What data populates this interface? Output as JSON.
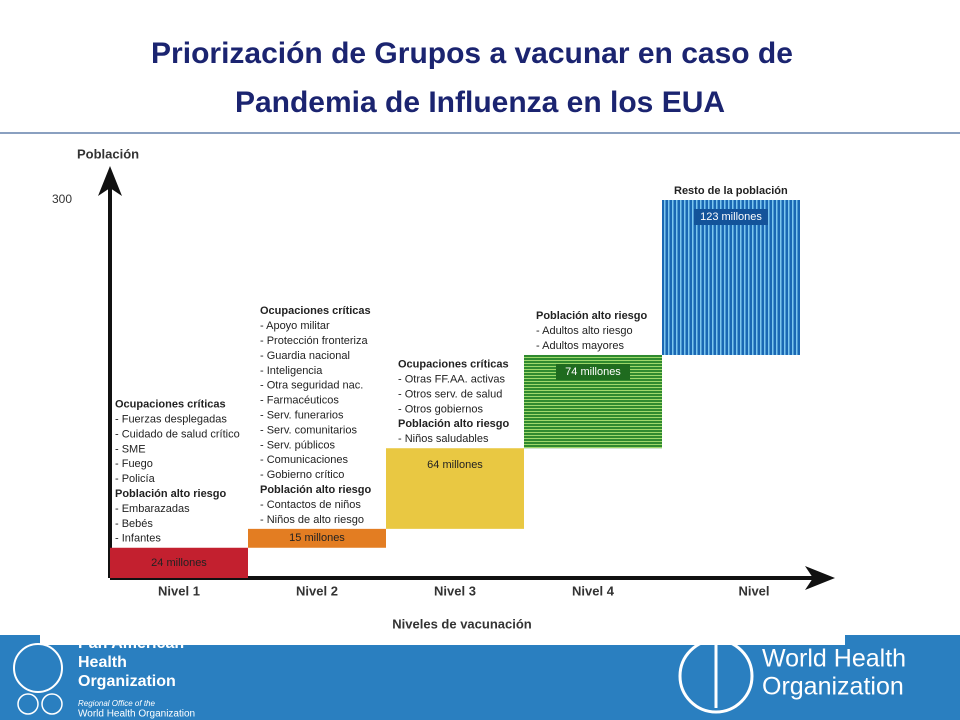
{
  "title": "Priorización de Grupos a vacunar en caso de Pandemia de Influenza en los EUA",
  "chart_data": {
    "type": "waterfall",
    "y_axis_label": "Población",
    "x_axis_label": "Niveles de vacunación",
    "categories": [
      "Nivel 1",
      "Nivel 2",
      "Nivel 3",
      "Nivel 4",
      "Nivel"
    ],
    "values": [
      24,
      15,
      64,
      74,
      123
    ],
    "value_labels": [
      "24 millones",
      "15 millones",
      "64 millones",
      "74 millones",
      "123 millones"
    ],
    "colors": [
      "#c3202f",
      "#e37d22",
      "#e9c842",
      "#2f8a2f",
      "#1a68b4"
    ],
    "striped": [
      false,
      false,
      false,
      true,
      true
    ],
    "ylim": [
      0,
      300
    ],
    "yticks": [
      300
    ],
    "grid": false,
    "annotations": [
      [
        {
          "heading": "Ocupaciones críticas",
          "items": [
            "- Fuerzas desplegadas",
            "- Cuidado de salud crítico",
            "- SME",
            "- Fuego",
            "- Policía"
          ]
        },
        {
          "heading": "Población alto riesgo",
          "items": [
            "- Embarazadas",
            "- Bebés",
            "- Infantes"
          ]
        }
      ],
      [
        {
          "heading": "Ocupaciones críticas",
          "items": [
            "- Apoyo militar",
            "- Protección fronteriza",
            "- Guardia nacional",
            "- Inteligencia",
            "- Otra seguridad nac.",
            "- Farmacéuticos",
            "- Serv. funerarios",
            "- Serv. comunitarios",
            "- Serv. públicos",
            "- Comunicaciones",
            "- Gobierno crítico"
          ]
        },
        {
          "heading": "Población alto riesgo",
          "items": [
            "- Contactos de niños",
            "-  Niños de alto riesgo"
          ]
        }
      ],
      [
        {
          "heading": "Ocupaciones críticas",
          "items": [
            "- Otras FF.AA. activas",
            "- Otros serv. de salud",
            "- Otros gobiernos"
          ]
        },
        {
          "heading": "Población alto riesgo",
          "items": [
            "- Niños saludables"
          ]
        }
      ],
      [
        {
          "heading": "Población alto riesgo",
          "items": [
            "- Adultos alto riesgo",
            "- Adultos mayores"
          ]
        }
      ],
      [
        {
          "heading": "Resto de la población",
          "items": []
        }
      ]
    ]
  },
  "footer": {
    "paho_name": [
      "Pan American",
      "Health",
      "Organization"
    ],
    "paho_sub": [
      "Regional Office of the",
      "World Health Organization"
    ],
    "who_name": [
      "World Health",
      "Organization"
    ]
  }
}
